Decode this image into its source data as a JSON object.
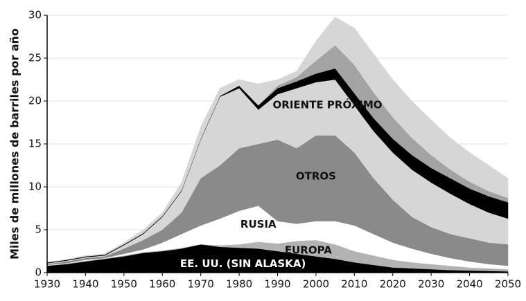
{
  "chart_data": {
    "type": "stacked_area",
    "y_label": "Miles de millones de barriles por año",
    "x": [
      1930,
      1935,
      1940,
      1945,
      1950,
      1955,
      1960,
      1965,
      1970,
      1975,
      1980,
      1985,
      1990,
      1995,
      2000,
      2005,
      2010,
      2015,
      2020,
      2025,
      2030,
      2035,
      2040,
      2045,
      2050
    ],
    "xlim": [
      1930,
      2050
    ],
    "xticks": [
      1930,
      1940,
      1950,
      1960,
      1970,
      1980,
      1990,
      2000,
      2010,
      2020,
      2030,
      2040,
      2050
    ],
    "ylim": [
      0,
      30
    ],
    "yticks": [
      0,
      5,
      10,
      15,
      20,
      25,
      30
    ],
    "grid": true,
    "series": [
      {
        "name": "EE. UU. (SIN ALASKA)",
        "color": "#000000",
        "values": [
          0.8,
          1.0,
          1.3,
          1.6,
          1.9,
          2.3,
          2.5,
          2.8,
          3.3,
          3.0,
          2.9,
          2.8,
          2.5,
          2.2,
          1.9,
          1.6,
          1.2,
          0.9,
          0.6,
          0.5,
          0.4,
          0.3,
          0.25,
          0.2,
          0.15
        ]
      },
      {
        "name": "EUROPA",
        "color": "#b3b3b3",
        "values": [
          0.05,
          0.05,
          0.1,
          0.05,
          0.1,
          0.1,
          0.1,
          0.1,
          0,
          0.2,
          0.4,
          0.8,
          0.9,
          1.5,
          1.9,
          1.7,
          1.3,
          1.1,
          0.9,
          0.7,
          0.6,
          0.5,
          0.35,
          0.3,
          0.25
        ]
      },
      {
        "name": "RUSIA",
        "color": "#ffffff",
        "values": [
          0.05,
          0.05,
          0.1,
          0.05,
          0.2,
          0.3,
          0.9,
          1.6,
          2.2,
          3.1,
          3.9,
          4.2,
          2.6,
          2.0,
          2.2,
          2.7,
          3.0,
          2.5,
          2.0,
          1.6,
          1.2,
          0.9,
          0.7,
          0.5,
          0.4
        ]
      },
      {
        "name": "OTROS",
        "color": "#8a8a8a",
        "values": [
          0.1,
          0.2,
          0.2,
          0.2,
          0.6,
          1.1,
          1.5,
          2.5,
          5.5,
          6.2,
          7.3,
          7.2,
          9.5,
          8.8,
          10.0,
          10.0,
          8.5,
          6.5,
          5.0,
          3.7,
          3.1,
          2.8,
          2.7,
          2.5,
          2.5
        ]
      },
      {
        "name": "ORIENTE PRÓXIMO",
        "color": "#d6d6d6",
        "values": [
          0.1,
          0.1,
          0.1,
          0.1,
          0.4,
          0.7,
          1.5,
          2.5,
          4.5,
          8.0,
          7.0,
          4.0,
          5.3,
          7.0,
          6.2,
          6.5,
          5.5,
          5.5,
          5.5,
          5.5,
          5.2,
          4.7,
          4.0,
          3.5,
          3.0
        ]
      },
      {
        "color": "#000000",
        "values": [
          0.1,
          0.1,
          0.1,
          0.1,
          0.1,
          0.1,
          0.1,
          0.1,
          0.1,
          0.1,
          0.3,
          0.5,
          0.7,
          0.8,
          1.0,
          1.3,
          1.4,
          1.5,
          1.6,
          1.7,
          1.7,
          1.8,
          1.8,
          1.9,
          1.9
        ]
      },
      {
        "color": "#a3a3a3",
        "values": [
          0,
          0,
          0,
          0,
          0,
          0,
          0,
          0,
          0,
          0,
          0,
          0,
          0.3,
          0.5,
          1.5,
          2.7,
          3.3,
          3.0,
          2.5,
          2.0,
          1.5,
          1.0,
          0.8,
          0.6,
          0.5
        ]
      },
      {
        "color": "#d6d6d6",
        "values": [
          0,
          0,
          0.1,
          0.1,
          0.2,
          0.4,
          0.4,
          0.9,
          1.4,
          0.9,
          0.7,
          2.5,
          0.7,
          0.7,
          2.3,
          3.3,
          4.3,
          4.5,
          4.4,
          4.3,
          4.1,
          3.7,
          3.4,
          3.0,
          2.3
        ]
      }
    ]
  }
}
